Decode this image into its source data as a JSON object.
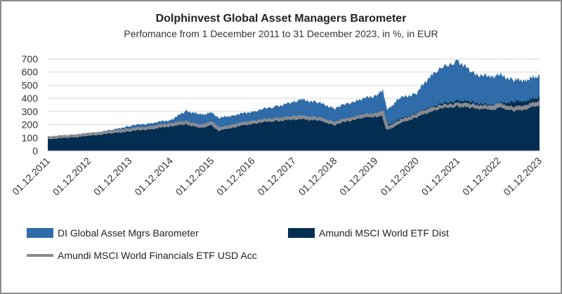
{
  "chart_data": {
    "type": "area",
    "title": "Dolphinvest Global Asset Managers Barometer",
    "subtitle": "Perfomance from 1 December 2011 to 31 December 2023, in %, in EUR",
    "xlabel": "",
    "ylabel": "",
    "ylim": [
      0,
      700
    ],
    "yticks": [
      "0",
      "100",
      "200",
      "300",
      "400",
      "500",
      "600",
      "700"
    ],
    "xlim": [
      2011.92,
      2023.92
    ],
    "xticks": [
      "01.12.2011",
      "01.12.2012",
      "01.12.2013",
      "01.12.2014",
      "01.12.2015",
      "01.12.2016",
      "01.12.2017",
      "01.12.2018",
      "01.12.2019",
      "01.12.2020",
      "01.12.2021",
      "01.12.2022",
      "01.12.2023"
    ],
    "grid": true,
    "legend_position": "bottom",
    "x": [
      2011.92,
      2012.5,
      2012.92,
      2013.5,
      2013.92,
      2014.5,
      2014.92,
      2015.3,
      2015.65,
      2015.92,
      2016.1,
      2016.5,
      2016.92,
      2017.5,
      2017.92,
      2018.1,
      2018.5,
      2018.92,
      2019.5,
      2019.92,
      2020.1,
      2020.2,
      2020.5,
      2020.92,
      2021.3,
      2021.92,
      2022.3,
      2022.75,
      2022.92,
      2023.3,
      2023.6,
      2023.92
    ],
    "series": [
      {
        "name": "DI Global Asset Mgrs Barometer",
        "color": "#2f6ca9",
        "style": "area",
        "values": [
          100,
          115,
          135,
          160,
          190,
          215,
          235,
          305,
          275,
          290,
          250,
          275,
          300,
          340,
          370,
          390,
          370,
          325,
          390,
          420,
          460,
          310,
          400,
          440,
          590,
          690,
          590,
          560,
          580,
          540,
          540,
          575
        ]
      },
      {
        "name": "Amundi MSCI World ETF Dist",
        "color": "#032e52",
        "style": "area",
        "values": [
          100,
          110,
          120,
          135,
          150,
          170,
          190,
          205,
          180,
          200,
          175,
          190,
          215,
          235,
          245,
          250,
          245,
          215,
          260,
          280,
          295,
          190,
          240,
          285,
          340,
          385,
          370,
          345,
          360,
          375,
          380,
          410
        ]
      },
      {
        "name": "Amundi MSCI World Financials ETF USD Acc",
        "color": "#8a8a8f",
        "style": "line",
        "values": [
          100,
          112,
          125,
          145,
          160,
          180,
          200,
          215,
          185,
          210,
          165,
          195,
          220,
          240,
          250,
          255,
          245,
          210,
          260,
          275,
          285,
          170,
          220,
          270,
          320,
          355,
          340,
          325,
          345,
          320,
          335,
          365
        ]
      }
    ]
  }
}
